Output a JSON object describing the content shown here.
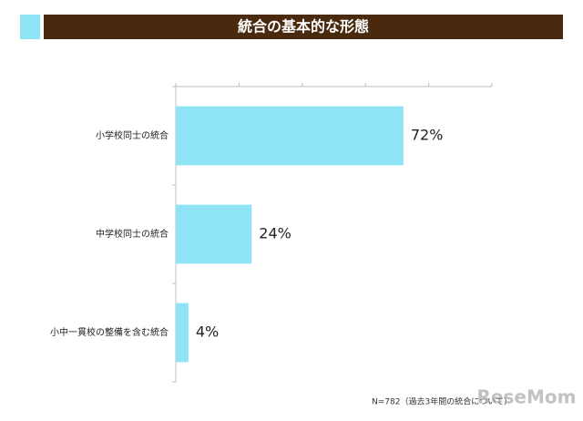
{
  "chart_data": {
    "type": "bar",
    "orientation": "horizontal",
    "title": "統合の基本的な形態",
    "categories": [
      "小学校同士の統合",
      "中学校同士の統合",
      "小中一貫校の整備を含む統合"
    ],
    "values": [
      72,
      24,
      4
    ],
    "value_labels": [
      "72%",
      "24%",
      "4%"
    ],
    "color": "#8ee3f5",
    "xlim": [
      0,
      100
    ],
    "xticks": [
      0,
      20,
      40,
      60,
      80,
      100
    ],
    "footnote": "N=782（過去3年間の統合について）",
    "watermark": "ReseMom"
  }
}
